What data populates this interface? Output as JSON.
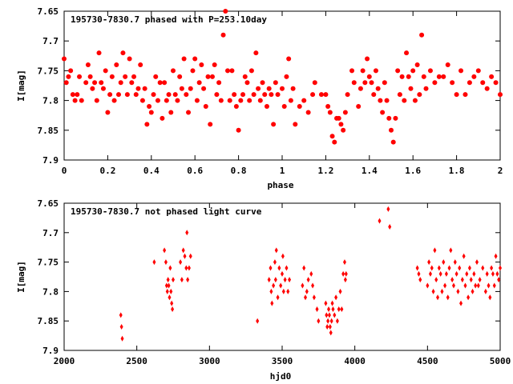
{
  "chart_data": [
    {
      "type": "scatter",
      "title": "195730-7830.7 phased with P=253.10day",
      "xlabel": "phase",
      "ylabel": "I[mag]",
      "xlim": [
        0,
        2
      ],
      "ylim": [
        7.65,
        7.9
      ],
      "y_inverted": true,
      "marker": "filled circle",
      "color": "#ff0000",
      "xticks": [
        "0",
        "0.2",
        "0.4",
        "0.6",
        "0.8",
        "1",
        "1.2",
        "1.4",
        "1.6",
        "1.8",
        "2"
      ],
      "yticks": [
        "7.65",
        "7.7",
        "7.75",
        "7.8",
        "7.85",
        "7.9"
      ],
      "points": [
        [
          0.0,
          7.73
        ],
        [
          0.01,
          7.77
        ],
        [
          0.02,
          7.76
        ],
        [
          0.03,
          7.75
        ],
        [
          0.04,
          7.79
        ],
        [
          0.05,
          7.8
        ],
        [
          0.06,
          7.79
        ],
        [
          0.07,
          7.76
        ],
        [
          0.08,
          7.8
        ],
        [
          0.1,
          7.77
        ],
        [
          0.11,
          7.74
        ],
        [
          0.12,
          7.76
        ],
        [
          0.13,
          7.78
        ],
        [
          0.14,
          7.77
        ],
        [
          0.15,
          7.8
        ],
        [
          0.16,
          7.72
        ],
        [
          0.17,
          7.77
        ],
        [
          0.18,
          7.78
        ],
        [
          0.19,
          7.75
        ],
        [
          0.2,
          7.82
        ],
        [
          0.21,
          7.79
        ],
        [
          0.22,
          7.76
        ],
        [
          0.23,
          7.8
        ],
        [
          0.24,
          7.74
        ],
        [
          0.25,
          7.79
        ],
        [
          0.26,
          7.77
        ],
        [
          0.27,
          7.72
        ],
        [
          0.28,
          7.76
        ],
        [
          0.29,
          7.79
        ],
        [
          0.3,
          7.73
        ],
        [
          0.31,
          7.77
        ],
        [
          0.32,
          7.76
        ],
        [
          0.33,
          7.79
        ],
        [
          0.34,
          7.78
        ],
        [
          0.35,
          7.74
        ],
        [
          0.36,
          7.8
        ],
        [
          0.37,
          7.78
        ],
        [
          0.38,
          7.84
        ],
        [
          0.39,
          7.81
        ],
        [
          0.4,
          7.82
        ],
        [
          0.41,
          7.79
        ],
        [
          0.42,
          7.76
        ],
        [
          0.43,
          7.8
        ],
        [
          0.44,
          7.77
        ],
        [
          0.45,
          7.83
        ],
        [
          0.46,
          7.77
        ],
        [
          0.47,
          7.8
        ],
        [
          0.48,
          7.79
        ],
        [
          0.49,
          7.82
        ],
        [
          0.5,
          7.75
        ],
        [
          0.51,
          7.79
        ],
        [
          0.52,
          7.8
        ],
        [
          0.53,
          7.76
        ],
        [
          0.54,
          7.78
        ],
        [
          0.55,
          7.73
        ],
        [
          0.56,
          7.79
        ],
        [
          0.57,
          7.82
        ],
        [
          0.58,
          7.78
        ],
        [
          0.59,
          7.75
        ],
        [
          0.6,
          7.73
        ],
        [
          0.61,
          7.8
        ],
        [
          0.62,
          7.77
        ],
        [
          0.63,
          7.74
        ],
        [
          0.64,
          7.78
        ],
        [
          0.65,
          7.81
        ],
        [
          0.66,
          7.76
        ],
        [
          0.67,
          7.84
        ],
        [
          0.68,
          7.76
        ],
        [
          0.69,
          7.74
        ],
        [
          0.7,
          7.79
        ],
        [
          0.71,
          7.77
        ],
        [
          0.72,
          7.8
        ],
        [
          0.73,
          7.69
        ],
        [
          0.74,
          7.65
        ],
        [
          0.75,
          7.75
        ],
        [
          0.76,
          7.8
        ],
        [
          0.77,
          7.75
        ],
        [
          0.78,
          7.79
        ],
        [
          0.79,
          7.81
        ],
        [
          0.8,
          7.85
        ],
        [
          0.81,
          7.8
        ],
        [
          0.82,
          7.79
        ],
        [
          0.83,
          7.76
        ],
        [
          0.84,
          7.77
        ],
        [
          0.85,
          7.8
        ],
        [
          0.86,
          7.75
        ],
        [
          0.87,
          7.79
        ],
        [
          0.88,
          7.72
        ],
        [
          0.89,
          7.78
        ],
        [
          0.9,
          7.8
        ],
        [
          0.91,
          7.77
        ],
        [
          0.92,
          7.79
        ],
        [
          0.93,
          7.81
        ],
        [
          0.94,
          7.78
        ],
        [
          0.95,
          7.79
        ],
        [
          0.96,
          7.84
        ],
        [
          0.97,
          7.77
        ],
        [
          0.98,
          7.79
        ],
        [
          1.0,
          7.78
        ],
        [
          1.01,
          7.81
        ],
        [
          1.02,
          7.76
        ],
        [
          1.03,
          7.73
        ],
        [
          1.04,
          7.8
        ],
        [
          1.05,
          7.78
        ],
        [
          1.06,
          7.84
        ],
        [
          1.08,
          7.81
        ],
        [
          1.1,
          7.8
        ],
        [
          1.12,
          7.82
        ],
        [
          1.14,
          7.79
        ],
        [
          1.15,
          7.77
        ],
        [
          1.18,
          7.79
        ],
        [
          1.2,
          7.79
        ],
        [
          1.21,
          7.81
        ],
        [
          1.22,
          7.82
        ],
        [
          1.23,
          7.86
        ],
        [
          1.24,
          7.87
        ],
        [
          1.25,
          7.83
        ],
        [
          1.26,
          7.83
        ],
        [
          1.27,
          7.84
        ],
        [
          1.28,
          7.85
        ],
        [
          1.29,
          7.82
        ],
        [
          1.3,
          7.79
        ],
        [
          1.32,
          7.75
        ],
        [
          1.33,
          7.77
        ],
        [
          1.35,
          7.81
        ],
        [
          1.36,
          7.78
        ],
        [
          1.37,
          7.75
        ],
        [
          1.38,
          7.77
        ],
        [
          1.39,
          7.73
        ],
        [
          1.4,
          7.76
        ],
        [
          1.41,
          7.77
        ],
        [
          1.42,
          7.79
        ],
        [
          1.43,
          7.75
        ],
        [
          1.44,
          7.78
        ],
        [
          1.45,
          7.8
        ],
        [
          1.46,
          7.82
        ],
        [
          1.47,
          7.77
        ],
        [
          1.48,
          7.8
        ],
        [
          1.49,
          7.83
        ],
        [
          1.5,
          7.85
        ],
        [
          1.51,
          7.87
        ],
        [
          1.52,
          7.83
        ],
        [
          1.53,
          7.75
        ],
        [
          1.54,
          7.79
        ],
        [
          1.55,
          7.76
        ],
        [
          1.56,
          7.8
        ],
        [
          1.57,
          7.72
        ],
        [
          1.58,
          7.76
        ],
        [
          1.59,
          7.78
        ],
        [
          1.6,
          7.75
        ],
        [
          1.61,
          7.8
        ],
        [
          1.62,
          7.74
        ],
        [
          1.63,
          7.79
        ],
        [
          1.64,
          7.69
        ],
        [
          1.65,
          7.76
        ],
        [
          1.66,
          7.78
        ],
        [
          1.68,
          7.75
        ],
        [
          1.7,
          7.77
        ],
        [
          1.72,
          7.76
        ],
        [
          1.74,
          7.76
        ],
        [
          1.76,
          7.74
        ],
        [
          1.78,
          7.77
        ],
        [
          1.8,
          7.79
        ],
        [
          1.82,
          7.75
        ],
        [
          1.84,
          7.79
        ],
        [
          1.86,
          7.77
        ],
        [
          1.88,
          7.76
        ],
        [
          1.9,
          7.75
        ],
        [
          1.92,
          7.77
        ],
        [
          1.94,
          7.78
        ],
        [
          1.96,
          7.76
        ],
        [
          1.98,
          7.77
        ],
        [
          2.0,
          7.79
        ]
      ]
    },
    {
      "type": "scatter",
      "title": "195730-7830.7 not phased light curve",
      "xlabel": "hjd0",
      "ylabel": "I[mag]",
      "xlim": [
        2000,
        5000
      ],
      "ylim": [
        7.65,
        7.9
      ],
      "y_inverted": true,
      "marker": "filled diamond",
      "color": "#ff0000",
      "xticks": [
        "2000",
        "2500",
        "3000",
        "3500",
        "4000",
        "4500",
        "5000"
      ],
      "yticks": [
        "7.65",
        "7.7",
        "7.75",
        "7.8",
        "7.85",
        "7.9"
      ],
      "points": [
        [
          2390,
          7.84
        ],
        [
          2395,
          7.86
        ],
        [
          2400,
          7.88
        ],
        [
          2620,
          7.75
        ],
        [
          2690,
          7.73
        ],
        [
          2700,
          7.75
        ],
        [
          2705,
          7.79
        ],
        [
          2710,
          7.8
        ],
        [
          2715,
          7.78
        ],
        [
          2720,
          7.79
        ],
        [
          2725,
          7.81
        ],
        [
          2730,
          7.76
        ],
        [
          2735,
          7.8
        ],
        [
          2740,
          7.82
        ],
        [
          2745,
          7.83
        ],
        [
          2750,
          7.78
        ],
        [
          2800,
          7.75
        ],
        [
          2810,
          7.78
        ],
        [
          2820,
          7.73
        ],
        [
          2830,
          7.74
        ],
        [
          2840,
          7.76
        ],
        [
          2845,
          7.7
        ],
        [
          2850,
          7.78
        ],
        [
          2860,
          7.76
        ],
        [
          2870,
          7.74
        ],
        [
          3330,
          7.85
        ],
        [
          3410,
          7.78
        ],
        [
          3420,
          7.76
        ],
        [
          3425,
          7.8
        ],
        [
          3430,
          7.82
        ],
        [
          3440,
          7.79
        ],
        [
          3450,
          7.75
        ],
        [
          3455,
          7.78
        ],
        [
          3460,
          7.73
        ],
        [
          3470,
          7.81
        ],
        [
          3480,
          7.76
        ],
        [
          3490,
          7.79
        ],
        [
          3500,
          7.77
        ],
        [
          3505,
          7.74
        ],
        [
          3510,
          7.8
        ],
        [
          3520,
          7.78
        ],
        [
          3530,
          7.76
        ],
        [
          3540,
          7.8
        ],
        [
          3550,
          7.78
        ],
        [
          3640,
          7.79
        ],
        [
          3650,
          7.76
        ],
        [
          3660,
          7.81
        ],
        [
          3670,
          7.8
        ],
        [
          3680,
          7.78
        ],
        [
          3700,
          7.77
        ],
        [
          3710,
          7.79
        ],
        [
          3720,
          7.81
        ],
        [
          3740,
          7.83
        ],
        [
          3750,
          7.85
        ],
        [
          3800,
          7.82
        ],
        [
          3805,
          7.84
        ],
        [
          3810,
          7.86
        ],
        [
          3815,
          7.85
        ],
        [
          3820,
          7.83
        ],
        [
          3825,
          7.84
        ],
        [
          3830,
          7.86
        ],
        [
          3835,
          7.87
        ],
        [
          3840,
          7.85
        ],
        [
          3845,
          7.82
        ],
        [
          3850,
          7.83
        ],
        [
          3860,
          7.84
        ],
        [
          3870,
          7.81
        ],
        [
          3880,
          7.85
        ],
        [
          3890,
          7.83
        ],
        [
          3900,
          7.8
        ],
        [
          3910,
          7.83
        ],
        [
          3920,
          7.77
        ],
        [
          3930,
          7.75
        ],
        [
          3935,
          7.78
        ],
        [
          3940,
          7.77
        ],
        [
          4170,
          7.68
        ],
        [
          4230,
          7.66
        ],
        [
          4240,
          7.69
        ],
        [
          4430,
          7.76
        ],
        [
          4440,
          7.77
        ],
        [
          4450,
          7.78
        ],
        [
          4500,
          7.79
        ],
        [
          4510,
          7.75
        ],
        [
          4520,
          7.77
        ],
        [
          4530,
          7.76
        ],
        [
          4540,
          7.8
        ],
        [
          4550,
          7.73
        ],
        [
          4560,
          7.78
        ],
        [
          4570,
          7.81
        ],
        [
          4580,
          7.76
        ],
        [
          4590,
          7.77
        ],
        [
          4600,
          7.8
        ],
        [
          4610,
          7.75
        ],
        [
          4620,
          7.79
        ],
        [
          4630,
          7.77
        ],
        [
          4640,
          7.81
        ],
        [
          4650,
          7.76
        ],
        [
          4660,
          7.73
        ],
        [
          4670,
          7.78
        ],
        [
          4680,
          7.79
        ],
        [
          4690,
          7.75
        ],
        [
          4700,
          7.77
        ],
        [
          4710,
          7.8
        ],
        [
          4720,
          7.76
        ],
        [
          4730,
          7.82
        ],
        [
          4740,
          7.78
        ],
        [
          4750,
          7.74
        ],
        [
          4760,
          7.79
        ],
        [
          4770,
          7.77
        ],
        [
          4780,
          7.81
        ],
        [
          4790,
          7.76
        ],
        [
          4800,
          7.78
        ],
        [
          4810,
          7.8
        ],
        [
          4820,
          7.77
        ],
        [
          4830,
          7.79
        ],
        [
          4840,
          7.75
        ],
        [
          4850,
          7.79
        ],
        [
          4860,
          7.78
        ],
        [
          4880,
          7.76
        ],
        [
          4900,
          7.8
        ],
        [
          4910,
          7.77
        ],
        [
          4920,
          7.79
        ],
        [
          4930,
          7.81
        ],
        [
          4940,
          7.76
        ],
        [
          4950,
          7.77
        ],
        [
          4960,
          7.79
        ],
        [
          4970,
          7.74
        ],
        [
          4980,
          7.77
        ],
        [
          4990,
          7.78
        ],
        [
          5000,
          7.76
        ]
      ]
    }
  ]
}
